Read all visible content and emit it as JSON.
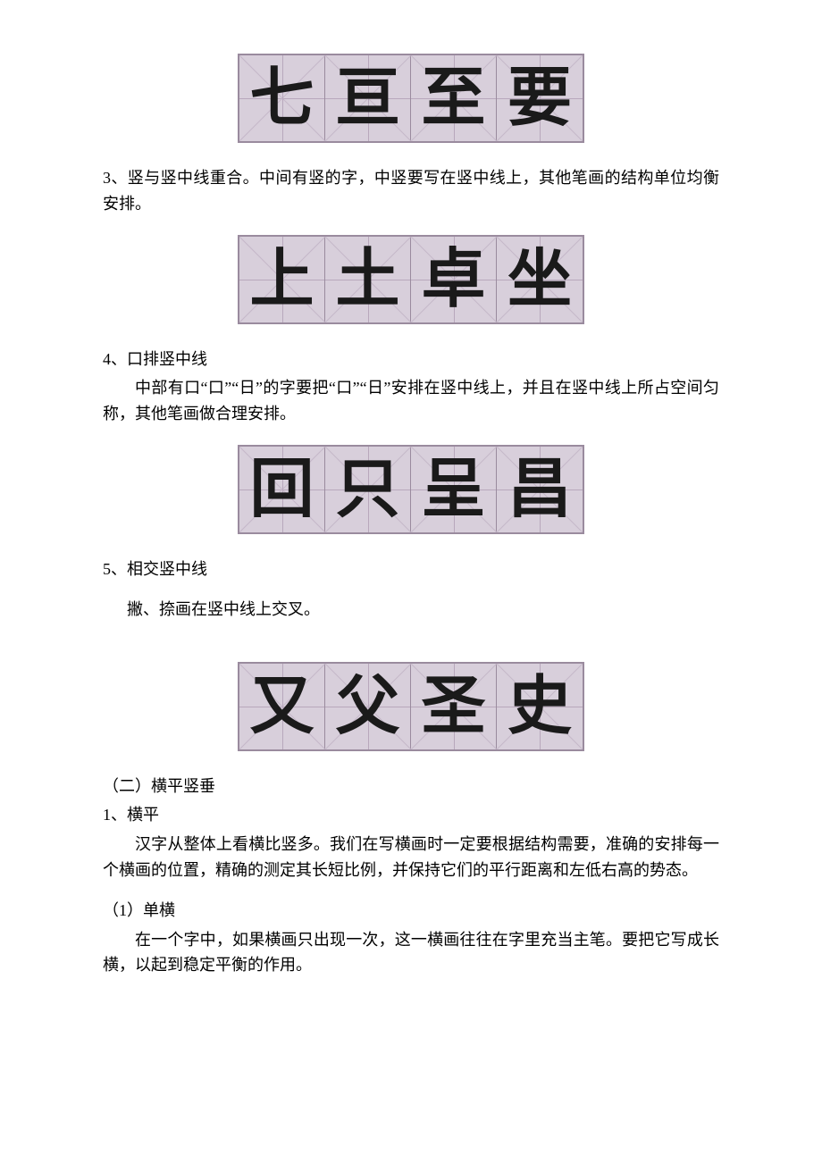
{
  "typography": {
    "body_font": "SimSun",
    "body_fontsize": 18,
    "calligraphy_font": "KaiTi",
    "calligraphy_fontsize": 72,
    "text_color": "#000000",
    "calligraphy_color": "#1a1a1a"
  },
  "grid_style": {
    "cell_size": 96,
    "border_color": "#9a8b9e",
    "background_color": "#d8cfdb",
    "guide_line_color": "#b8a8bc",
    "diagonal_color": "#c5b8c9"
  },
  "example1": {
    "chars": [
      "七",
      "亘",
      "至",
      "要"
    ]
  },
  "section3": {
    "heading": "3、竖与竖中线重合。中间有竖的字，中竖要写在竖中线上，其他笔画的结构单位均衡安排。"
  },
  "example2": {
    "chars": [
      "上",
      "土",
      "卓",
      "坐"
    ]
  },
  "section4": {
    "heading": "4、口排竖中线",
    "body": "中部有口“口”“日”的字要把“口”“日”安排在竖中线上，并且在竖中线上所占空间匀称，其他笔画做合理安排。"
  },
  "example3": {
    "chars": [
      "回",
      "只",
      "呈",
      "昌"
    ]
  },
  "section5": {
    "heading": "5、相交竖中线",
    "body": "撇、捺画在竖中线上交叉。"
  },
  "example4": {
    "chars": [
      "又",
      "父",
      "圣",
      "史"
    ]
  },
  "section_b": {
    "heading": "（二）横平竖垂",
    "sub1_heading": "1、横平",
    "sub1_body": "汉字从整体上看横比竖多。我们在写横画时一定要根据结构需要，准确的安排每一个横画的位置，精确的测定其长短比例，并保持它们的平行距离和左低右高的势态。",
    "sub1_1_heading": "（1）单横",
    "sub1_1_body": "在一个字中，如果横画只出现一次，这一横画往往在字里充当主笔。要把它写成长横，以起到稳定平衡的作用。"
  }
}
